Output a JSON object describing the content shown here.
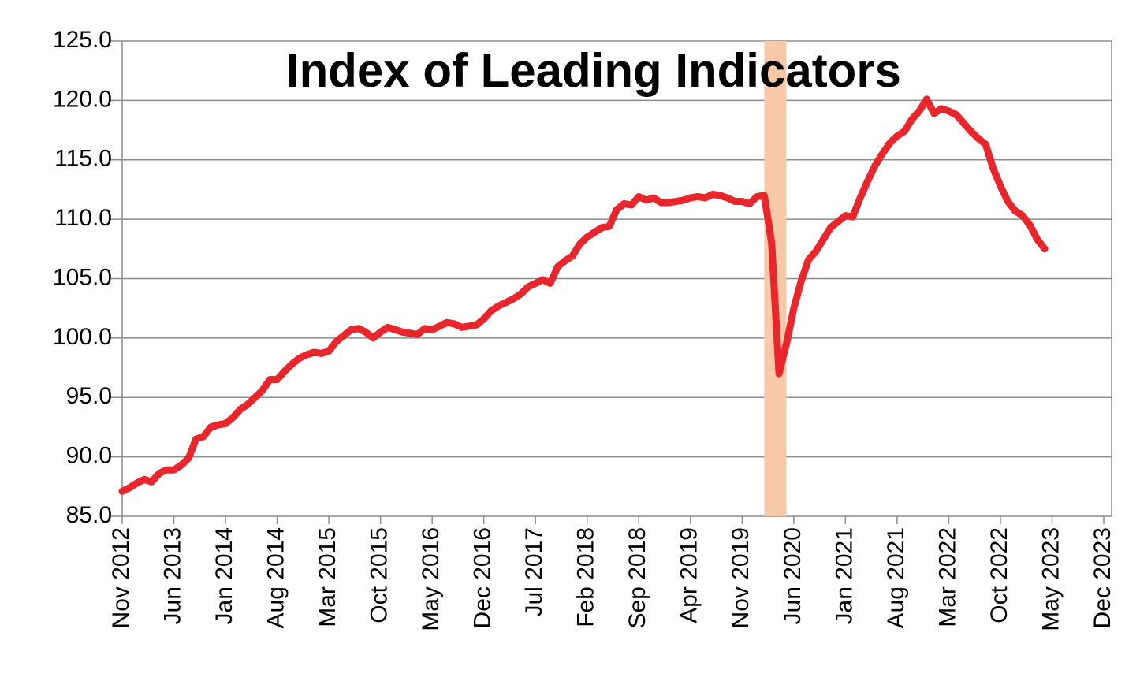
{
  "chart_data": {
    "type": "line",
    "title": "Index of Leading Indicators",
    "x": [
      "2012-11",
      "2012-12",
      "2013-01",
      "2013-02",
      "2013-03",
      "2013-04",
      "2013-05",
      "2013-06",
      "2013-07",
      "2013-08",
      "2013-09",
      "2013-10",
      "2013-11",
      "2013-12",
      "2014-01",
      "2014-02",
      "2014-03",
      "2014-04",
      "2014-05",
      "2014-06",
      "2014-07",
      "2014-08",
      "2014-09",
      "2014-10",
      "2014-11",
      "2014-12",
      "2015-01",
      "2015-02",
      "2015-03",
      "2015-04",
      "2015-05",
      "2015-06",
      "2015-07",
      "2015-08",
      "2015-09",
      "2015-10",
      "2015-11",
      "2015-12",
      "2016-01",
      "2016-02",
      "2016-03",
      "2016-04",
      "2016-05",
      "2016-06",
      "2016-07",
      "2016-08",
      "2016-09",
      "2016-10",
      "2016-11",
      "2016-12",
      "2017-01",
      "2017-02",
      "2017-03",
      "2017-04",
      "2017-05",
      "2017-06",
      "2017-07",
      "2017-08",
      "2017-09",
      "2017-10",
      "2017-11",
      "2017-12",
      "2018-01",
      "2018-02",
      "2018-03",
      "2018-04",
      "2018-05",
      "2018-06",
      "2018-07",
      "2018-08",
      "2018-09",
      "2018-10",
      "2018-11",
      "2018-12",
      "2019-01",
      "2019-02",
      "2019-03",
      "2019-04",
      "2019-05",
      "2019-06",
      "2019-07",
      "2019-08",
      "2019-09",
      "2019-10",
      "2019-11",
      "2019-12",
      "2020-01",
      "2020-02",
      "2020-03",
      "2020-04",
      "2020-05",
      "2020-06",
      "2020-07",
      "2020-08",
      "2020-09",
      "2020-10",
      "2020-11",
      "2020-12",
      "2021-01",
      "2021-02",
      "2021-03",
      "2021-04",
      "2021-05",
      "2021-06",
      "2021-07",
      "2021-08",
      "2021-09",
      "2021-10",
      "2021-11",
      "2021-12",
      "2022-01",
      "2022-02",
      "2022-03",
      "2022-04",
      "2022-05",
      "2022-06",
      "2022-07",
      "2022-08",
      "2022-09",
      "2022-10",
      "2022-11",
      "2022-12",
      "2023-01",
      "2023-02",
      "2023-03",
      "2023-04"
    ],
    "series": [
      {
        "color": "#e8262b",
        "values": [
          87.1,
          87.4,
          87.8,
          88.1,
          87.9,
          88.6,
          88.9,
          88.9,
          89.3,
          89.9,
          91.5,
          91.7,
          92.5,
          92.7,
          92.8,
          93.3,
          94.0,
          94.4,
          95.0,
          95.6,
          96.5,
          96.5,
          97.2,
          97.8,
          98.3,
          98.6,
          98.8,
          98.7,
          98.9,
          99.7,
          100.2,
          100.7,
          100.8,
          100.5,
          100.0,
          100.5,
          100.9,
          100.7,
          100.5,
          100.4,
          100.3,
          100.8,
          100.7,
          101.0,
          101.3,
          101.2,
          100.9,
          101.0,
          101.1,
          101.6,
          102.3,
          102.7,
          103.0,
          103.3,
          103.7,
          104.3,
          104.6,
          104.9,
          104.6,
          106.0,
          106.5,
          106.9,
          107.9,
          108.5,
          108.9,
          109.3,
          109.4,
          110.8,
          111.3,
          111.2,
          111.9,
          111.6,
          111.8,
          111.4,
          111.4,
          111.5,
          111.6,
          111.8,
          111.9,
          111.8,
          112.1,
          112.0,
          111.8,
          111.5,
          111.5,
          111.3,
          111.9,
          112.0,
          108.0,
          97.0,
          99.5,
          102.5,
          104.8,
          106.6,
          107.3,
          108.3,
          109.3,
          109.8,
          110.3,
          110.2,
          111.8,
          113.2,
          114.5,
          115.5,
          116.4,
          117.0,
          117.4,
          118.4,
          119.1,
          120.1,
          118.9,
          119.3,
          119.1,
          118.8,
          118.1,
          117.4,
          116.8,
          116.3,
          114.3,
          112.8,
          111.5,
          110.7,
          110.3,
          109.5,
          108.3,
          107.5
        ]
      }
    ],
    "shaded_ranges": [
      {
        "start": "2020-02",
        "end": "2020-05",
        "color": "#f8c9a8"
      }
    ],
    "xlim": [
      "2012-11",
      "2023-12"
    ],
    "xticks": [
      {
        "value": "2012-11",
        "label": "Nov 2012"
      },
      {
        "value": "2013-06",
        "label": "Jun 2013"
      },
      {
        "value": "2014-01",
        "label": "Jan 2014"
      },
      {
        "value": "2014-08",
        "label": "Aug 2014"
      },
      {
        "value": "2015-03",
        "label": "Mar 2015"
      },
      {
        "value": "2015-10",
        "label": "Oct 2015"
      },
      {
        "value": "2016-05",
        "label": "May 2016"
      },
      {
        "value": "2016-12",
        "label": "Dec 2016"
      },
      {
        "value": "2017-07",
        "label": "Jul 2017"
      },
      {
        "value": "2018-02",
        "label": "Feb 2018"
      },
      {
        "value": "2018-09",
        "label": "Sep 2018"
      },
      {
        "value": "2019-04",
        "label": "Apr 2019"
      },
      {
        "value": "2019-11",
        "label": "Nov 2019"
      },
      {
        "value": "2020-06",
        "label": "Jun 2020"
      },
      {
        "value": "2021-01",
        "label": "Jan 2021"
      },
      {
        "value": "2021-08",
        "label": "Aug 2021"
      },
      {
        "value": "2022-03",
        "label": "Mar 2022"
      },
      {
        "value": "2022-10",
        "label": "Oct 2022"
      },
      {
        "value": "2023-05",
        "label": "May 2023"
      },
      {
        "value": "2023-12",
        "label": "Dec 2023"
      }
    ],
    "ylim": [
      85,
      125
    ],
    "yticks": [
      {
        "value": 85,
        "label": "85.0"
      },
      {
        "value": 90,
        "label": "90.0"
      },
      {
        "value": 95,
        "label": "95.0"
      },
      {
        "value": 100,
        "label": "100.0"
      },
      {
        "value": 105,
        "label": "105.0"
      },
      {
        "value": 110,
        "label": "110.0"
      },
      {
        "value": 115,
        "label": "115.0"
      },
      {
        "value": 120,
        "label": "120.0"
      },
      {
        "value": 125,
        "label": "125.0"
      }
    ],
    "grid": true
  }
}
